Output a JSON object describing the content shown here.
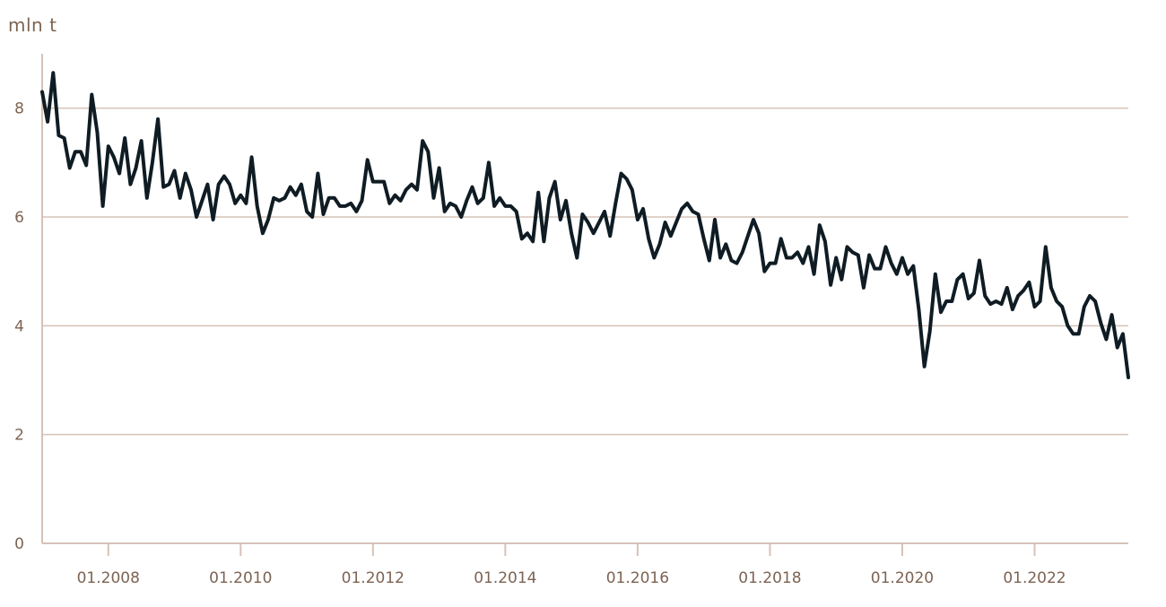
{
  "chart_data": {
    "type": "line",
    "ylabel": "mln t",
    "ylim": [
      0,
      9
    ],
    "yticks": [
      0,
      2,
      4,
      6,
      8
    ],
    "xlim": [
      "2007-01",
      "2023-06"
    ],
    "xticks": [
      "01.2008",
      "01.2010",
      "01.2012",
      "01.2014",
      "01.2016",
      "01.2018",
      "01.2020",
      "01.2022"
    ],
    "grid": "horizontal",
    "line_color": "#0f1c24",
    "series": [
      {
        "x": [
          "2007-01",
          "2007-02",
          "2007-03",
          "2007-04",
          "2007-05",
          "2007-06",
          "2007-07",
          "2007-08",
          "2007-09",
          "2007-10",
          "2007-11",
          "2007-12",
          "2008-01",
          "2008-02",
          "2008-03",
          "2008-04",
          "2008-05",
          "2008-06",
          "2008-07",
          "2008-08",
          "2008-09",
          "2008-10",
          "2008-11",
          "2008-12",
          "2009-01",
          "2009-02",
          "2009-03",
          "2009-04",
          "2009-05",
          "2009-06",
          "2009-07",
          "2009-08",
          "2009-09",
          "2009-10",
          "2009-11",
          "2009-12",
          "2010-01",
          "2010-02",
          "2010-03",
          "2010-04",
          "2010-05",
          "2010-06",
          "2010-07",
          "2010-08",
          "2010-09",
          "2010-10",
          "2010-11",
          "2010-12",
          "2011-01",
          "2011-02",
          "2011-03",
          "2011-04",
          "2011-05",
          "2011-06",
          "2011-07",
          "2011-08",
          "2011-09",
          "2011-10",
          "2011-11",
          "2011-12",
          "2012-01",
          "2012-02",
          "2012-03",
          "2012-04",
          "2012-05",
          "2012-06",
          "2012-07",
          "2012-08",
          "2012-09",
          "2012-10",
          "2012-11",
          "2012-12",
          "2013-01",
          "2013-02",
          "2013-03",
          "2013-04",
          "2013-05",
          "2013-06",
          "2013-07",
          "2013-08",
          "2013-09",
          "2013-10",
          "2013-11",
          "2013-12",
          "2014-01",
          "2014-02",
          "2014-03",
          "2014-04",
          "2014-05",
          "2014-06",
          "2014-07",
          "2014-08",
          "2014-09",
          "2014-10",
          "2014-11",
          "2014-12",
          "2015-01",
          "2015-02",
          "2015-03",
          "2015-04",
          "2015-05",
          "2015-06",
          "2015-07",
          "2015-08",
          "2015-09",
          "2015-10",
          "2015-11",
          "2015-12",
          "2016-01",
          "2016-02",
          "2016-03",
          "2016-04",
          "2016-05",
          "2016-06",
          "2016-07",
          "2016-08",
          "2016-09",
          "2016-10",
          "2016-11",
          "2016-12",
          "2017-01",
          "2017-02",
          "2017-03",
          "2017-04",
          "2017-05",
          "2017-06",
          "2017-07",
          "2017-08",
          "2017-09",
          "2017-10",
          "2017-11",
          "2017-12",
          "2018-01",
          "2018-02",
          "2018-03",
          "2018-04",
          "2018-05",
          "2018-06",
          "2018-07",
          "2018-08",
          "2018-09",
          "2018-10",
          "2018-11",
          "2018-12",
          "2019-01",
          "2019-02",
          "2019-03",
          "2019-04",
          "2019-05",
          "2019-06",
          "2019-07",
          "2019-08",
          "2019-09",
          "2019-10",
          "2019-11",
          "2019-12",
          "2020-01",
          "2020-02",
          "2020-03",
          "2020-04",
          "2020-05",
          "2020-06",
          "2020-07",
          "2020-08",
          "2020-09",
          "2020-10",
          "2020-11",
          "2020-12",
          "2021-01",
          "2021-02",
          "2021-03",
          "2021-04",
          "2021-05",
          "2021-06",
          "2021-07",
          "2021-08",
          "2021-09",
          "2021-10",
          "2021-11",
          "2021-12",
          "2022-01",
          "2022-02",
          "2022-03",
          "2022-04",
          "2022-05",
          "2022-06",
          "2022-07",
          "2022-08",
          "2022-09",
          "2022-10",
          "2022-11",
          "2022-12",
          "2023-01",
          "2023-02",
          "2023-03",
          "2023-04",
          "2023-05",
          "2023-06"
        ],
        "values": [
          8.3,
          7.75,
          8.65,
          7.5,
          7.45,
          6.9,
          7.2,
          7.2,
          6.95,
          8.25,
          7.55,
          6.2,
          7.3,
          7.1,
          6.8,
          7.45,
          6.6,
          6.9,
          7.4,
          6.35,
          7.0,
          7.8,
          6.55,
          6.6,
          6.85,
          6.35,
          6.8,
          6.5,
          6.0,
          6.3,
          6.6,
          5.95,
          6.6,
          6.75,
          6.6,
          6.25,
          6.4,
          6.25,
          7.1,
          6.2,
          5.7,
          5.95,
          6.35,
          6.3,
          6.35,
          6.55,
          6.4,
          6.6,
          6.1,
          6.0,
          6.8,
          6.05,
          6.35,
          6.35,
          6.2,
          6.2,
          6.25,
          6.1,
          6.3,
          7.05,
          6.65,
          6.65,
          6.65,
          6.25,
          6.4,
          6.3,
          6.5,
          6.6,
          6.5,
          7.4,
          7.2,
          6.35,
          6.9,
          6.1,
          6.25,
          6.2,
          6.0,
          6.3,
          6.55,
          6.25,
          6.35,
          7.0,
          6.2,
          6.35,
          6.2,
          6.2,
          6.1,
          5.6,
          5.7,
          5.55,
          6.45,
          5.55,
          6.35,
          6.65,
          5.95,
          6.3,
          5.7,
          5.25,
          6.05,
          5.9,
          5.7,
          5.9,
          6.1,
          5.65,
          6.25,
          6.8,
          6.7,
          6.5,
          5.95,
          6.15,
          5.6,
          5.25,
          5.5,
          5.9,
          5.65,
          5.9,
          6.15,
          6.25,
          6.1,
          6.05,
          5.6,
          5.2,
          5.95,
          5.25,
          5.5,
          5.2,
          5.15,
          5.35,
          5.65,
          5.95,
          5.7,
          5.0,
          5.15,
          5.15,
          5.6,
          5.25,
          5.25,
          5.35,
          5.15,
          5.45,
          4.95,
          5.85,
          5.55,
          4.75,
          5.25,
          4.85,
          5.45,
          5.35,
          5.3,
          4.7,
          5.3,
          5.05,
          5.05,
          5.45,
          5.15,
          4.95,
          5.25,
          4.95,
          5.1,
          4.3,
          3.25,
          3.9,
          4.95,
          4.25,
          4.45,
          4.45,
          4.85,
          4.95,
          4.5,
          4.6,
          5.2,
          4.55,
          4.4,
          4.45,
          4.4,
          4.7,
          4.3,
          4.55,
          4.65,
          4.8,
          4.35,
          4.45,
          5.45,
          4.7,
          4.45,
          4.35,
          4.0,
          3.85,
          3.85,
          4.35,
          4.55,
          4.45,
          4.05,
          3.75,
          4.2,
          3.6,
          3.85,
          3.05
        ]
      }
    ]
  }
}
